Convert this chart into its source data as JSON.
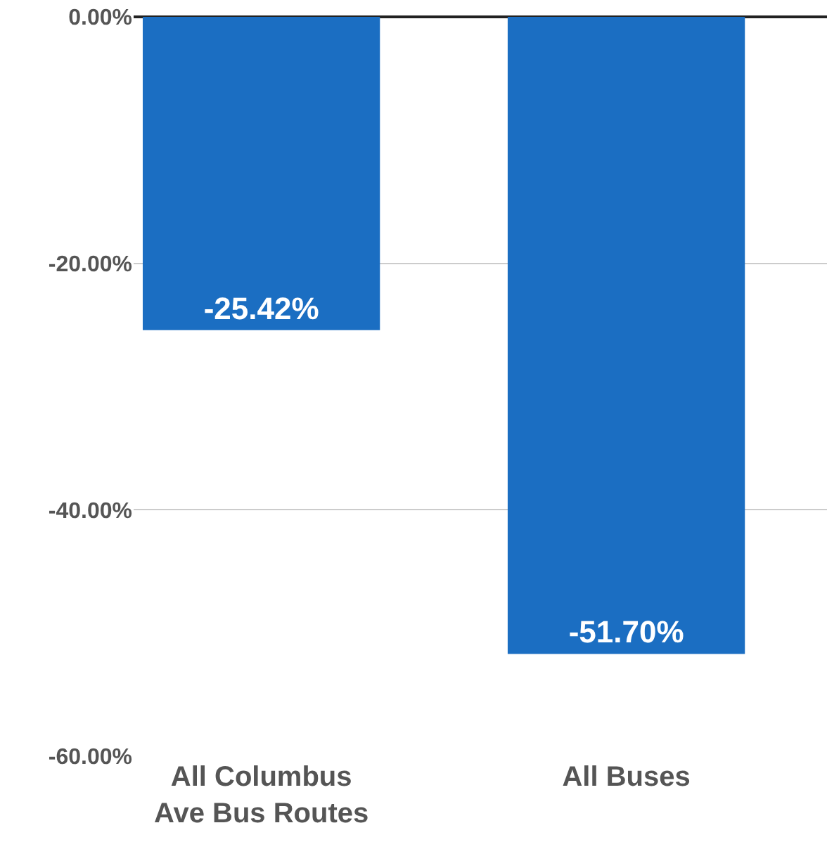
{
  "chart_data": {
    "type": "bar",
    "categories": [
      "All Columbus\nAve Bus Routes",
      "All Buses"
    ],
    "values": [
      -25.42,
      -51.7
    ],
    "color": "#1b6ec2",
    "value_labels": [
      "-25.42%",
      "-51.70%"
    ],
    "ylim": [
      -60,
      0
    ],
    "yticks": [
      {
        "value": 0,
        "label": "0.00%"
      },
      {
        "value": -20,
        "label": "-20.00%"
      },
      {
        "value": -40,
        "label": "-40.00%"
      },
      {
        "value": -60,
        "label": "-60.00%"
      }
    ],
    "grid": "y"
  }
}
